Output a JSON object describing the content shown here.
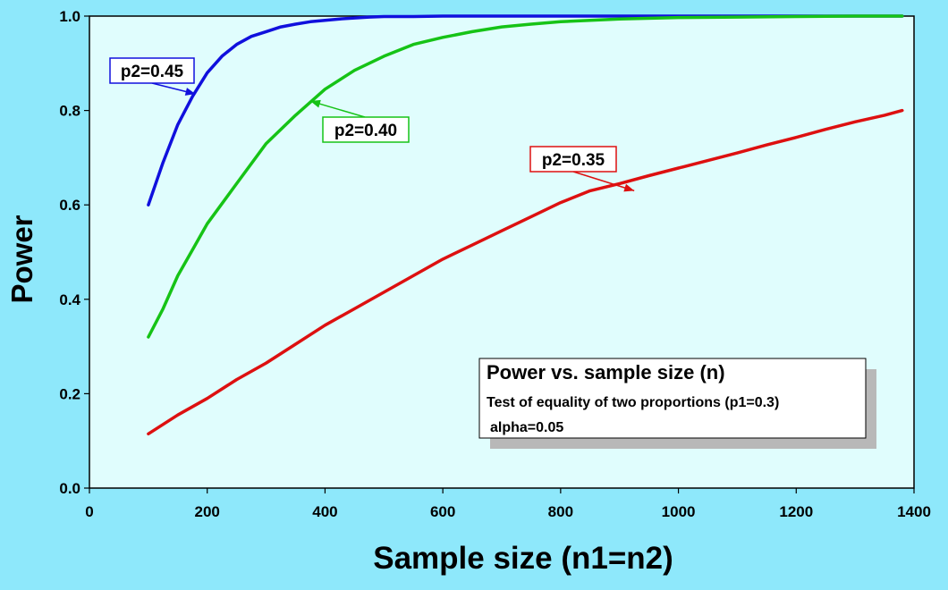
{
  "chart_data": {
    "type": "line",
    "xlabel": "Sample size (n1=n2)",
    "ylabel": "Power",
    "xlim": [
      0,
      1400
    ],
    "ylim": [
      0,
      1.0
    ],
    "xticks": [
      "0",
      "200",
      "400",
      "600",
      "800",
      "1000",
      "1200",
      "1400"
    ],
    "yticks": [
      "0.0",
      "0.2",
      "0.4",
      "0.6",
      "0.8",
      "1.0"
    ],
    "grid": false,
    "legend": "none",
    "background_color": "#e0fdfd",
    "series": [
      {
        "name": "p2=0.45",
        "color": "#1010dd",
        "x": [
          100,
          125,
          150,
          175,
          200,
          225,
          250,
          275,
          300,
          325,
          350,
          375,
          400,
          425,
          450,
          475,
          500,
          550,
          600,
          700,
          800,
          900,
          1000,
          1100,
          1200,
          1300,
          1380
        ],
        "y": [
          0.6,
          0.69,
          0.77,
          0.83,
          0.88,
          0.915,
          0.94,
          0.957,
          0.967,
          0.977,
          0.983,
          0.988,
          0.991,
          0.994,
          0.996,
          0.998,
          0.999,
          0.999,
          1.0,
          1.0,
          1.0,
          1.0,
          1.0,
          1.0,
          1.0,
          1.0,
          1.0
        ]
      },
      {
        "name": "p2=0.40",
        "color": "#16c316",
        "x": [
          100,
          125,
          150,
          175,
          200,
          250,
          300,
          350,
          400,
          450,
          500,
          550,
          600,
          650,
          700,
          750,
          800,
          850,
          900,
          1000,
          1100,
          1200,
          1300,
          1380
        ],
        "y": [
          0.32,
          0.38,
          0.45,
          0.505,
          0.56,
          0.645,
          0.73,
          0.79,
          0.845,
          0.885,
          0.915,
          0.94,
          0.955,
          0.967,
          0.977,
          0.983,
          0.988,
          0.991,
          0.994,
          0.997,
          0.998,
          0.999,
          1.0,
          1.0
        ]
      },
      {
        "name": "p2=0.35",
        "color": "#dd1010",
        "x": [
          100,
          150,
          200,
          250,
          300,
          350,
          400,
          450,
          500,
          550,
          600,
          650,
          700,
          750,
          800,
          850,
          900,
          950,
          1000,
          1050,
          1100,
          1150,
          1200,
          1250,
          1300,
          1350,
          1380
        ],
        "y": [
          0.115,
          0.155,
          0.19,
          0.23,
          0.265,
          0.305,
          0.345,
          0.38,
          0.415,
          0.45,
          0.485,
          0.515,
          0.545,
          0.575,
          0.605,
          0.63,
          0.645,
          0.662,
          0.678,
          0.694,
          0.71,
          0.727,
          0.743,
          0.76,
          0.776,
          0.79,
          0.8
        ]
      }
    ],
    "annotations": [
      {
        "label": "p2=0.45",
        "series_index": 0,
        "point": [
          180,
          0.835
        ]
      },
      {
        "label": "p2=0.40",
        "series_index": 1,
        "point": [
          375,
          0.82
        ]
      },
      {
        "label": "p2=0.35",
        "series_index": 2,
        "point": [
          925,
          0.63
        ]
      }
    ],
    "info_box": {
      "title": "Power vs. sample size (n)",
      "line1": "Test of equality of two proportions (p1=0.3)",
      "line2": "alpha=0.05"
    }
  }
}
